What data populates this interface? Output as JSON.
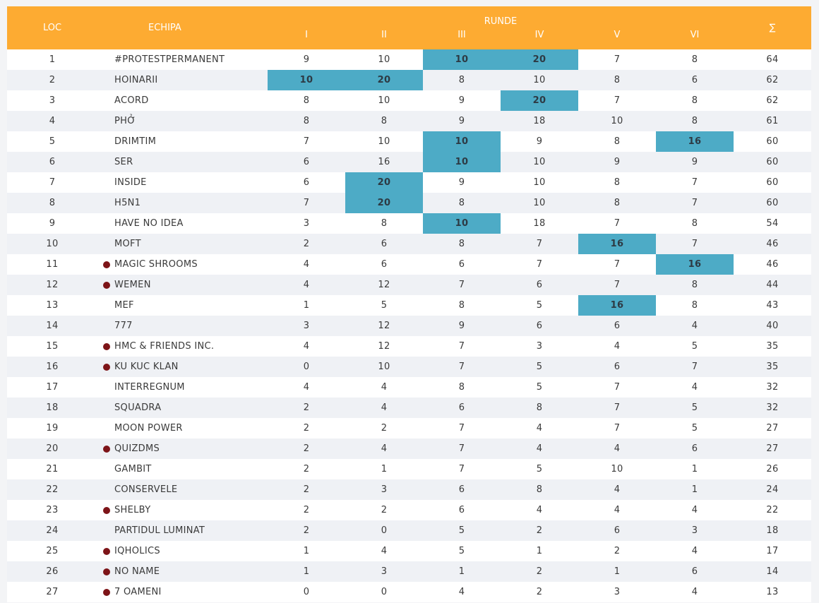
{
  "header": {
    "loc": "LOC",
    "team": "ECHIPA",
    "runde": "RUNDE",
    "rounds": [
      "I",
      "II",
      "III",
      "IV",
      "V",
      "VI"
    ],
    "sum": "∑"
  },
  "colors": {
    "header_bg": "#fdab32",
    "highlight": "#4dabc6",
    "dot": "#7d1418"
  },
  "rows": [
    {
      "loc": "1",
      "team": "#PROTESTPERMANENT",
      "dot": false,
      "scores": [
        "9",
        "10",
        "10",
        "20",
        "7",
        "8"
      ],
      "hl": [
        false,
        false,
        true,
        true,
        false,
        false
      ],
      "sum": "64"
    },
    {
      "loc": "2",
      "team": "HOINARII",
      "dot": false,
      "scores": [
        "10",
        "20",
        "8",
        "10",
        "8",
        "6"
      ],
      "hl": [
        true,
        true,
        false,
        false,
        false,
        false
      ],
      "sum": "62"
    },
    {
      "loc": "3",
      "team": "ACORD",
      "dot": false,
      "scores": [
        "8",
        "10",
        "9",
        "20",
        "7",
        "8"
      ],
      "hl": [
        false,
        false,
        false,
        true,
        false,
        false
      ],
      "sum": "62"
    },
    {
      "loc": "4",
      "team": "PHỞ",
      "dot": false,
      "scores": [
        "8",
        "8",
        "9",
        "18",
        "10",
        "8"
      ],
      "hl": [
        false,
        false,
        false,
        false,
        false,
        false
      ],
      "sum": "61"
    },
    {
      "loc": "5",
      "team": "DRIMTIM",
      "dot": false,
      "scores": [
        "7",
        "10",
        "10",
        "9",
        "8",
        "16"
      ],
      "hl": [
        false,
        false,
        true,
        false,
        false,
        true
      ],
      "sum": "60"
    },
    {
      "loc": "6",
      "team": "SER",
      "dot": false,
      "scores": [
        "6",
        "16",
        "10",
        "10",
        "9",
        "9"
      ],
      "hl": [
        false,
        false,
        true,
        false,
        false,
        false
      ],
      "sum": "60"
    },
    {
      "loc": "7",
      "team": "INSIDE",
      "dot": false,
      "scores": [
        "6",
        "20",
        "9",
        "10",
        "8",
        "7"
      ],
      "hl": [
        false,
        true,
        false,
        false,
        false,
        false
      ],
      "sum": "60"
    },
    {
      "loc": "8",
      "team": "H5N1",
      "dot": false,
      "scores": [
        "7",
        "20",
        "8",
        "10",
        "8",
        "7"
      ],
      "hl": [
        false,
        true,
        false,
        false,
        false,
        false
      ],
      "sum": "60"
    },
    {
      "loc": "9",
      "team": "HAVE NO IDEA",
      "dot": false,
      "scores": [
        "3",
        "8",
        "10",
        "18",
        "7",
        "8"
      ],
      "hl": [
        false,
        false,
        true,
        false,
        false,
        false
      ],
      "sum": "54"
    },
    {
      "loc": "10",
      "team": "MOFT",
      "dot": false,
      "scores": [
        "2",
        "6",
        "8",
        "7",
        "16",
        "7"
      ],
      "hl": [
        false,
        false,
        false,
        false,
        true,
        false
      ],
      "sum": "46"
    },
    {
      "loc": "11",
      "team": "MAGIC SHROOMS",
      "dot": true,
      "scores": [
        "4",
        "6",
        "6",
        "7",
        "7",
        "16"
      ],
      "hl": [
        false,
        false,
        false,
        false,
        false,
        true
      ],
      "sum": "46"
    },
    {
      "loc": "12",
      "team": "WEMEN",
      "dot": true,
      "scores": [
        "4",
        "12",
        "7",
        "6",
        "7",
        "8"
      ],
      "hl": [
        false,
        false,
        false,
        false,
        false,
        false
      ],
      "sum": "44"
    },
    {
      "loc": "13",
      "team": "MEF",
      "dot": false,
      "scores": [
        "1",
        "5",
        "8",
        "5",
        "16",
        "8"
      ],
      "hl": [
        false,
        false,
        false,
        false,
        true,
        false
      ],
      "sum": "43"
    },
    {
      "loc": "14",
      "team": "777",
      "dot": false,
      "scores": [
        "3",
        "12",
        "9",
        "6",
        "6",
        "4"
      ],
      "hl": [
        false,
        false,
        false,
        false,
        false,
        false
      ],
      "sum": "40"
    },
    {
      "loc": "15",
      "team": "HMC & FRIENDS INC.",
      "dot": true,
      "scores": [
        "4",
        "12",
        "7",
        "3",
        "4",
        "5"
      ],
      "hl": [
        false,
        false,
        false,
        false,
        false,
        false
      ],
      "sum": "35"
    },
    {
      "loc": "16",
      "team": "KU KUC KLAN",
      "dot": true,
      "scores": [
        "0",
        "10",
        "7",
        "5",
        "6",
        "7"
      ],
      "hl": [
        false,
        false,
        false,
        false,
        false,
        false
      ],
      "sum": "35"
    },
    {
      "loc": "17",
      "team": "INTERREGNUM",
      "dot": false,
      "scores": [
        "4",
        "4",
        "8",
        "5",
        "7",
        "4"
      ],
      "hl": [
        false,
        false,
        false,
        false,
        false,
        false
      ],
      "sum": "32"
    },
    {
      "loc": "18",
      "team": "SQUADRA",
      "dot": false,
      "scores": [
        "2",
        "4",
        "6",
        "8",
        "7",
        "5"
      ],
      "hl": [
        false,
        false,
        false,
        false,
        false,
        false
      ],
      "sum": "32"
    },
    {
      "loc": "19",
      "team": "MOON POWER",
      "dot": false,
      "scores": [
        "2",
        "2",
        "7",
        "4",
        "7",
        "5"
      ],
      "hl": [
        false,
        false,
        false,
        false,
        false,
        false
      ],
      "sum": "27"
    },
    {
      "loc": "20",
      "team": "QUIZDMS",
      "dot": true,
      "scores": [
        "2",
        "4",
        "7",
        "4",
        "4",
        "6"
      ],
      "hl": [
        false,
        false,
        false,
        false,
        false,
        false
      ],
      "sum": "27"
    },
    {
      "loc": "21",
      "team": "GAMBIT",
      "dot": false,
      "scores": [
        "2",
        "1",
        "7",
        "5",
        "10",
        "1"
      ],
      "hl": [
        false,
        false,
        false,
        false,
        false,
        false
      ],
      "sum": "26"
    },
    {
      "loc": "22",
      "team": "CONSERVELE",
      "dot": false,
      "scores": [
        "2",
        "3",
        "6",
        "8",
        "4",
        "1"
      ],
      "hl": [
        false,
        false,
        false,
        false,
        false,
        false
      ],
      "sum": "24"
    },
    {
      "loc": "23",
      "team": "SHELBY",
      "dot": true,
      "scores": [
        "2",
        "2",
        "6",
        "4",
        "4",
        "4"
      ],
      "hl": [
        false,
        false,
        false,
        false,
        false,
        false
      ],
      "sum": "22"
    },
    {
      "loc": "24",
      "team": "PARTIDUL LUMINAT",
      "dot": false,
      "scores": [
        "2",
        "0",
        "5",
        "2",
        "6",
        "3"
      ],
      "hl": [
        false,
        false,
        false,
        false,
        false,
        false
      ],
      "sum": "18"
    },
    {
      "loc": "25",
      "team": "IQHOLICS",
      "dot": true,
      "scores": [
        "1",
        "4",
        "5",
        "1",
        "2",
        "4"
      ],
      "hl": [
        false,
        false,
        false,
        false,
        false,
        false
      ],
      "sum": "17"
    },
    {
      "loc": "26",
      "team": "NO NAME",
      "dot": true,
      "scores": [
        "1",
        "3",
        "1",
        "2",
        "1",
        "6"
      ],
      "hl": [
        false,
        false,
        false,
        false,
        false,
        false
      ],
      "sum": "14"
    },
    {
      "loc": "27",
      "team": "7 OAMENI",
      "dot": true,
      "scores": [
        "0",
        "0",
        "4",
        "2",
        "3",
        "4"
      ],
      "hl": [
        false,
        false,
        false,
        false,
        false,
        false
      ],
      "sum": "13"
    }
  ]
}
